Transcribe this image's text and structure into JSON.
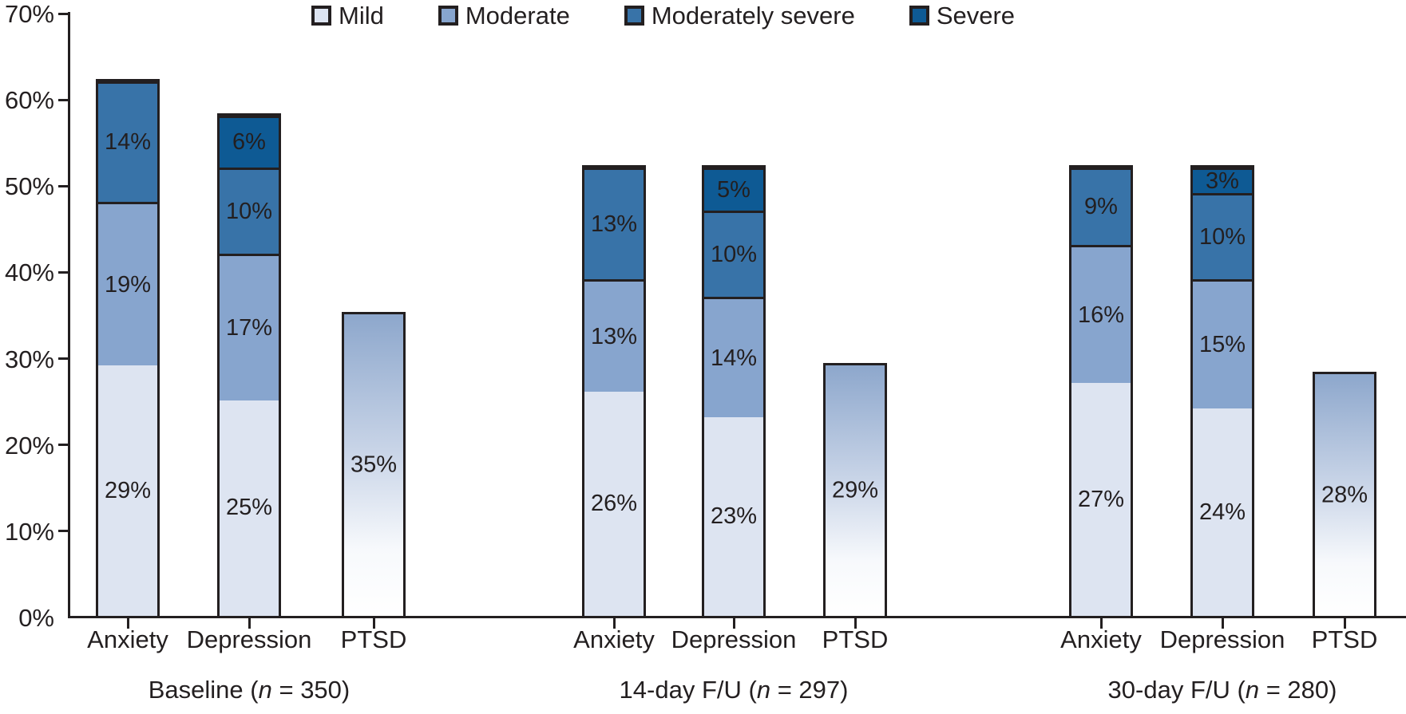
{
  "colors": {
    "outline": "#231f20",
    "text": "#231f20",
    "mild": "#dde4f1",
    "moderate": "#87a5ce",
    "moderately_severe": "#3873a8",
    "severe": "#0e5a94",
    "ptsd_gradient": [
      "#8da7cc",
      "#ccd7e9",
      "#f7f9fc",
      "#ffffff"
    ]
  },
  "chart_data": {
    "type": "bar",
    "subtype": "stacked-percentage-columns",
    "title": "",
    "xlabel": "",
    "ylabel": "",
    "grid": false,
    "legend_position": "top",
    "legend": [
      {
        "name": "Mild",
        "color_key": "mild"
      },
      {
        "name": "Moderate",
        "color_key": "moderate"
      },
      {
        "name": "Moderately severe",
        "color_key": "moderately_severe"
      },
      {
        "name": "Severe",
        "color_key": "severe"
      }
    ],
    "y_axis": {
      "ylim": [
        0,
        70
      ],
      "tick_step": 10,
      "tick_labels": [
        "0%",
        "10%",
        "20%",
        "30%",
        "40%",
        "50%",
        "60%",
        "70%"
      ]
    },
    "groups": [
      {
        "label_prefix": "Baseline (",
        "label_n": "n",
        "label_suffix": " = 350)",
        "bars": [
          {
            "category": "Anxiety",
            "segments": [
              {
                "name": "Mild",
                "value": 29,
                "label": "29%"
              },
              {
                "name": "Moderate",
                "value": 19,
                "label": "19%"
              },
              {
                "name": "Moderately severe",
                "value": 14,
                "label": "14%"
              }
            ]
          },
          {
            "category": "Depression",
            "segments": [
              {
                "name": "Mild",
                "value": 25,
                "label": "25%"
              },
              {
                "name": "Moderate",
                "value": 17,
                "label": "17%"
              },
              {
                "name": "Moderately severe",
                "value": 10,
                "label": "10%"
              },
              {
                "name": "Severe",
                "value": 6,
                "label": "6%"
              }
            ]
          },
          {
            "category": "PTSD",
            "gradient": true,
            "total": 35,
            "label": "35%"
          }
        ]
      },
      {
        "label_prefix": "14-day F/U (",
        "label_n": "n",
        "label_suffix": " = 297)",
        "bars": [
          {
            "category": "Anxiety",
            "segments": [
              {
                "name": "Mild",
                "value": 26,
                "label": "26%"
              },
              {
                "name": "Moderate",
                "value": 13,
                "label": "13%"
              },
              {
                "name": "Moderately severe",
                "value": 13,
                "label": "13%"
              }
            ]
          },
          {
            "category": "Depression",
            "segments": [
              {
                "name": "Mild",
                "value": 23,
                "label": "23%"
              },
              {
                "name": "Moderate",
                "value": 14,
                "label": "14%"
              },
              {
                "name": "Moderately severe",
                "value": 10,
                "label": "10%"
              },
              {
                "name": "Severe",
                "value": 5,
                "label": "5%"
              }
            ]
          },
          {
            "category": "PTSD",
            "gradient": true,
            "total": 29,
            "label": "29%"
          }
        ]
      },
      {
        "label_prefix": "30-day F/U (",
        "label_n": "n",
        "label_suffix": " = 280)",
        "bars": [
          {
            "category": "Anxiety",
            "segments": [
              {
                "name": "Mild",
                "value": 27,
                "label": "27%"
              },
              {
                "name": "Moderate",
                "value": 16,
                "label": "16%"
              },
              {
                "name": "Moderately severe",
                "value": 9,
                "label": "9%"
              }
            ]
          },
          {
            "category": "Depression",
            "segments": [
              {
                "name": "Mild",
                "value": 24,
                "label": "24%"
              },
              {
                "name": "Moderate",
                "value": 15,
                "label": "15%"
              },
              {
                "name": "Moderately severe",
                "value": 10,
                "label": "10%"
              },
              {
                "name": "Severe",
                "value": 3,
                "label": "3%"
              }
            ]
          },
          {
            "category": "PTSD",
            "gradient": true,
            "total": 28,
            "label": "28%"
          }
        ]
      }
    ]
  }
}
